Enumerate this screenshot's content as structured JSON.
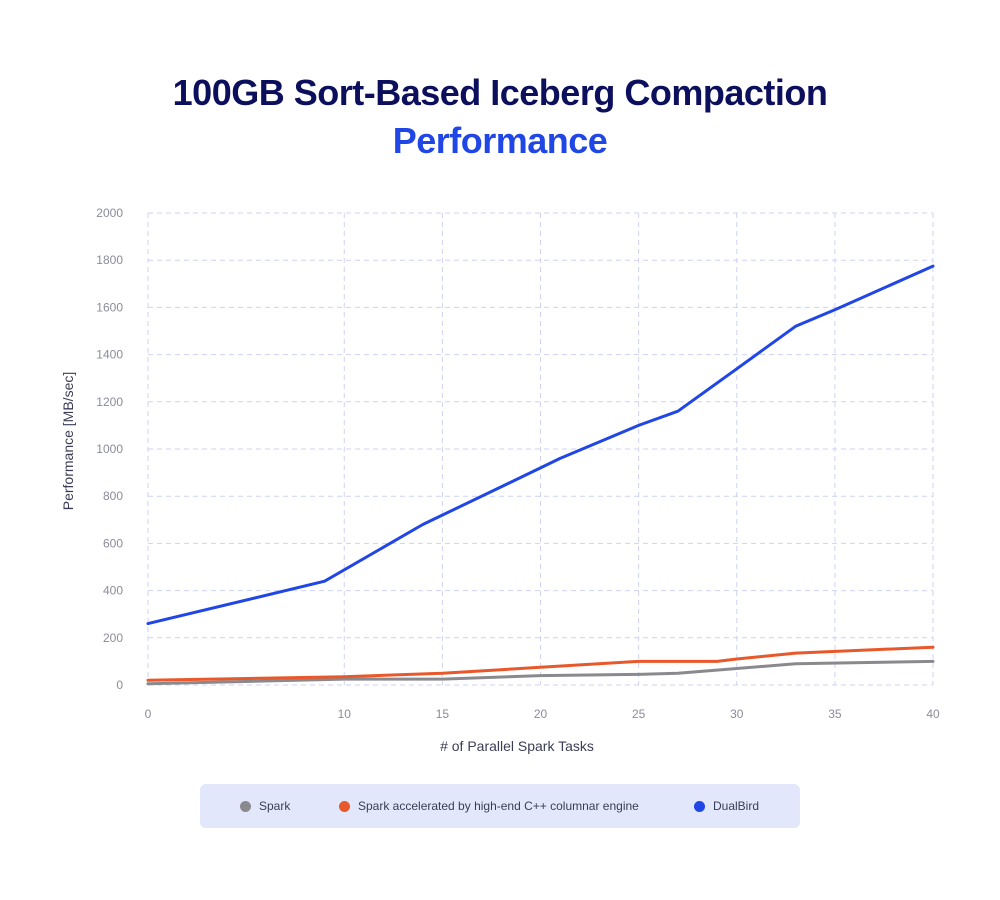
{
  "title": {
    "line1": "100GB Sort-Based Iceberg Compaction",
    "line2": "Performance"
  },
  "chart_data": {
    "type": "line",
    "title": "100GB Sort-Based Iceberg Compaction Performance",
    "xlabel": "# of Parallel Spark Tasks",
    "ylabel": "Performance [MB/sec]",
    "xlim": [
      0,
      40
    ],
    "ylim": [
      0,
      2000
    ],
    "x_ticks": [
      0,
      10,
      15,
      20,
      25,
      30,
      35,
      40
    ],
    "x_tick_labels": [
      "0",
      "10",
      "15",
      "20",
      "25",
      "30",
      "35",
      "40"
    ],
    "y_ticks": [
      0,
      200,
      400,
      600,
      800,
      1000,
      1200,
      1400,
      1600,
      1800,
      2000
    ],
    "y_tick_labels": [
      "0",
      "200",
      "400",
      "600",
      "800",
      "1000",
      "1200",
      "1400",
      "1600",
      "1800",
      "2000"
    ],
    "grid": true,
    "legend_position": "bottom",
    "series": [
      {
        "name": "Spark",
        "color": "#8a8a8e",
        "x": [
          0,
          10,
          15,
          20,
          25,
          27,
          30,
          33,
          40
        ],
        "y": [
          5,
          25,
          25,
          40,
          45,
          50,
          70,
          90,
          100
        ]
      },
      {
        "name": "Spark accelerated by high-end C++ columnar engine",
        "color": "#e8582a",
        "x": [
          0,
          10,
          15,
          20,
          25,
          27,
          29,
          30,
          33,
          40
        ],
        "y": [
          20,
          35,
          50,
          75,
          100,
          100,
          100,
          110,
          135,
          160
        ]
      },
      {
        "name": "DualBird",
        "color": "#2046e6",
        "x": [
          0,
          9,
          14,
          20,
          21,
          25,
          27,
          30,
          33,
          35,
          40
        ],
        "y": [
          260,
          440,
          680,
          920,
          960,
          1100,
          1160,
          1340,
          1520,
          1590,
          1775
        ]
      }
    ]
  }
}
